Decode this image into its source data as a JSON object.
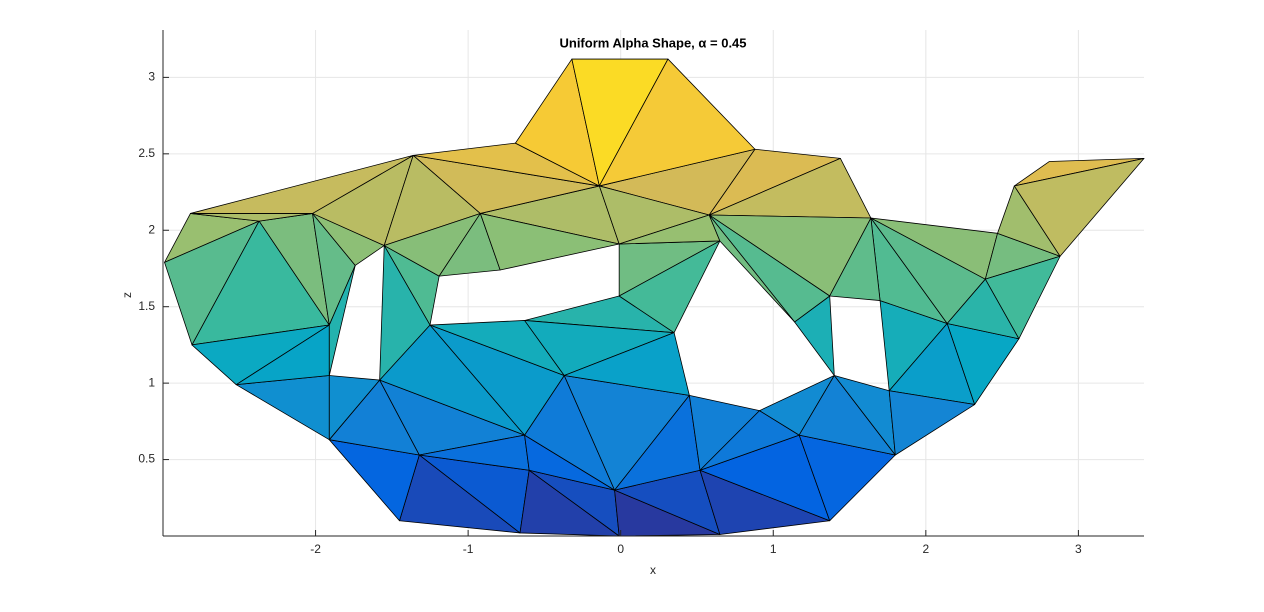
{
  "chart_data": {
    "type": "mesh",
    "title": "Uniform Alpha Shape, α = 0.45",
    "xlabel": "x",
    "ylabel": "z",
    "xlim": [
      -3.0,
      3.43
    ],
    "ylim": [
      0,
      3.31
    ],
    "xticks": [
      -2,
      -1,
      0,
      1,
      2,
      3
    ],
    "yticks": [
      0.5,
      1,
      1.5,
      2,
      2.5,
      3
    ],
    "grid": true,
    "colormap": "parula",
    "edge_color": "#000000",
    "vertices": {
      "x": [
        -1.45,
        -0.66,
        -0.01,
        0.65,
        1.37,
        -1.91,
        -1.32,
        -0.6,
        -0.04,
        0.52,
        1.17,
        1.8,
        -2.52,
        -1.91,
        -1.58,
        -1.25,
        -0.63,
        -0.37,
        0.45,
        0.91,
        1.4,
        1.76,
        2.32,
        -2.81,
        -2.37,
        -1.91,
        -1.74,
        -2.99,
        -2.82,
        -2.02,
        -1.55,
        -1.36,
        -0.92,
        -1.19,
        -0.79,
        -0.63,
        -0.01,
        -0.01,
        0.65,
        1.14,
        1.37,
        1.64,
        1.44,
        0.58,
        -0.14,
        -0.69,
        0.88,
        -0.32,
        0.31,
        1.7,
        2.14,
        2.61,
        2.47,
        2.58,
        2.81,
        3.43,
        2.88,
        2.39,
        0.35
      ],
      "z": [
        0.1,
        0.02,
        0.0,
        0.01,
        0.1,
        0.63,
        0.53,
        0.43,
        0.3,
        0.43,
        0.66,
        0.53,
        0.99,
        1.05,
        1.02,
        1.38,
        0.66,
        1.05,
        0.92,
        0.82,
        1.05,
        0.95,
        0.86,
        1.25,
        2.06,
        1.38,
        1.77,
        1.79,
        2.11,
        2.11,
        1.9,
        2.49,
        2.11,
        1.7,
        1.74,
        1.41,
        1.57,
        1.91,
        1.93,
        1.4,
        1.57,
        2.08,
        2.47,
        2.1,
        2.29,
        2.57,
        2.53,
        3.12,
        3.12,
        1.54,
        1.39,
        1.29,
        1.98,
        2.29,
        2.45,
        2.47,
        1.83,
        1.68,
        1.33
      ]
    },
    "faces": [
      [
        0,
        6,
        1
      ],
      [
        6,
        7,
        1
      ],
      [
        1,
        7,
        2
      ],
      [
        7,
        8,
        2
      ],
      [
        2,
        8,
        3
      ],
      [
        8,
        9,
        3
      ],
      [
        3,
        9,
        4
      ],
      [
        9,
        10,
        4
      ],
      [
        10,
        11,
        4
      ],
      [
        5,
        6,
        0
      ],
      [
        5,
        14,
        6
      ],
      [
        14,
        16,
        6
      ],
      [
        6,
        16,
        7
      ],
      [
        7,
        16,
        8
      ],
      [
        16,
        17,
        8
      ],
      [
        17,
        18,
        8
      ],
      [
        8,
        18,
        9
      ],
      [
        18,
        19,
        9
      ],
      [
        9,
        19,
        10
      ],
      [
        19,
        20,
        10
      ],
      [
        10,
        20,
        11
      ],
      [
        20,
        21,
        11
      ],
      [
        12,
        13,
        5
      ],
      [
        13,
        14,
        5
      ],
      [
        14,
        15,
        16
      ],
      [
        15,
        17,
        16
      ],
      [
        15,
        35,
        17
      ],
      [
        35,
        36,
        58
      ],
      [
        35,
        58,
        17
      ],
      [
        17,
        58,
        18
      ],
      [
        39,
        40,
        20
      ],
      [
        21,
        49,
        50
      ],
      [
        21,
        50,
        22
      ],
      [
        50,
        51,
        22
      ],
      [
        49,
        41,
        50
      ],
      [
        41,
        57,
        50
      ],
      [
        41,
        52,
        57
      ],
      [
        57,
        52,
        56
      ],
      [
        57,
        56,
        51
      ],
      [
        57,
        51,
        50
      ],
      [
        52,
        53,
        56
      ],
      [
        53,
        54,
        55
      ],
      [
        53,
        55,
        56
      ],
      [
        11,
        21,
        22
      ],
      [
        27,
        28,
        24
      ],
      [
        27,
        24,
        23
      ],
      [
        23,
        24,
        25
      ],
      [
        23,
        25,
        12
      ],
      [
        12,
        25,
        13
      ],
      [
        24,
        29,
        25
      ],
      [
        29,
        26,
        25
      ],
      [
        29,
        30,
        26
      ],
      [
        29,
        31,
        30
      ],
      [
        25,
        26,
        13
      ],
      [
        30,
        33,
        15
      ],
      [
        30,
        15,
        14
      ],
      [
        31,
        32,
        30
      ],
      [
        30,
        32,
        33
      ],
      [
        32,
        34,
        33
      ],
      [
        32,
        44,
        37
      ],
      [
        32,
        37,
        34
      ],
      [
        37,
        38,
        36
      ],
      [
        36,
        38,
        58
      ],
      [
        31,
        44,
        32
      ],
      [
        31,
        45,
        44
      ],
      [
        45,
        46,
        44
      ],
      [
        44,
        46,
        43
      ],
      [
        44,
        43,
        37
      ],
      [
        37,
        43,
        38
      ],
      [
        43,
        46,
        42
      ],
      [
        43,
        42,
        41
      ],
      [
        43,
        41,
        40
      ],
      [
        43,
        40,
        39
      ],
      [
        43,
        39,
        38
      ],
      [
        40,
        41,
        49
      ],
      [
        45,
        47,
        44
      ],
      [
        47,
        48,
        44
      ],
      [
        48,
        46,
        44
      ],
      [
        28,
        29,
        24
      ],
      [
        28,
        31,
        29
      ]
    ]
  }
}
